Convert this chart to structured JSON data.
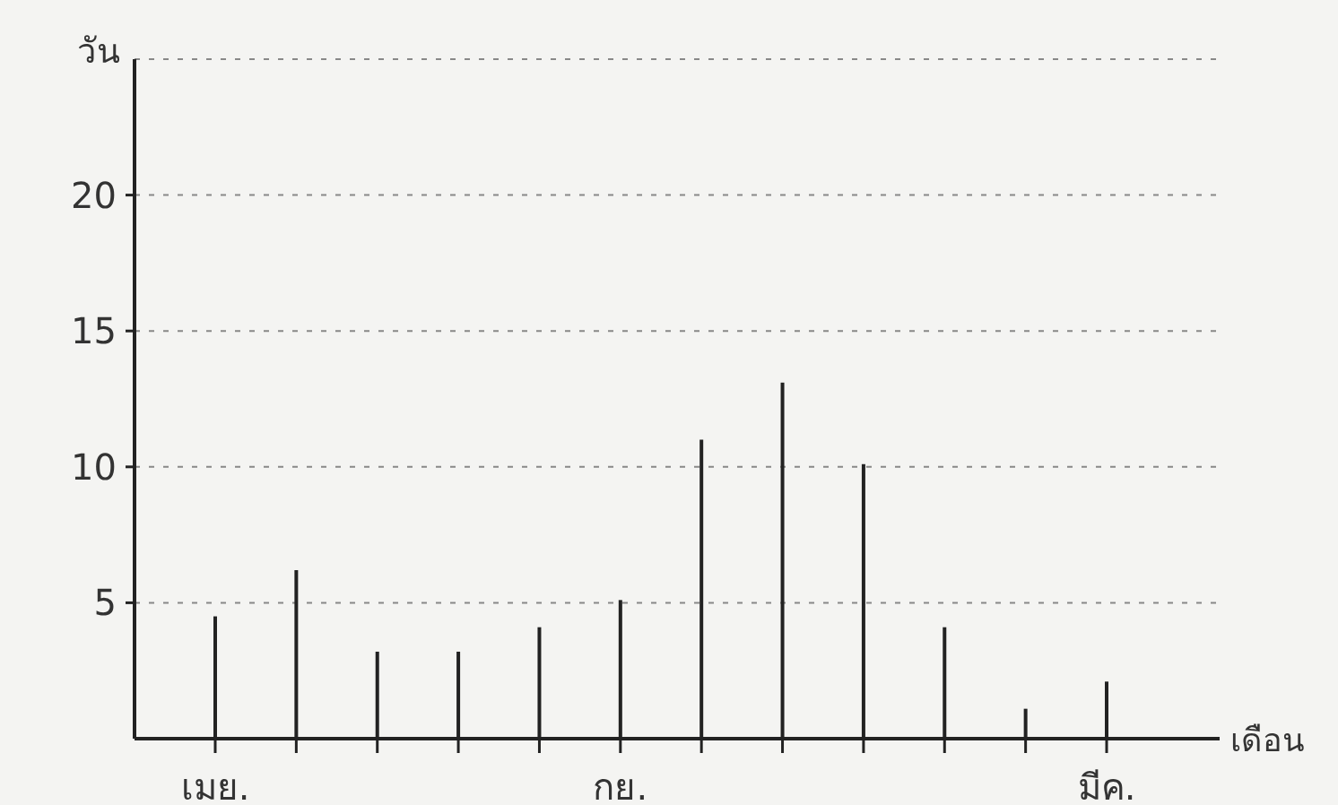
{
  "chart_data": {
    "type": "bar",
    "ylabel": "วัน",
    "xlabel": "เดือน",
    "categories": [
      "เมย.",
      null,
      null,
      null,
      null,
      "กย.",
      null,
      null,
      null,
      null,
      null,
      "มีค."
    ],
    "values": [
      4.5,
      6.2,
      3.2,
      3.2,
      4.1,
      5.1,
      11.0,
      13.1,
      10.1,
      4.1,
      1.1,
      2.1
    ],
    "color": "#222222",
    "ylim": [
      0,
      25
    ],
    "yticks": [
      5,
      10,
      15,
      20
    ],
    "grid": "y"
  }
}
